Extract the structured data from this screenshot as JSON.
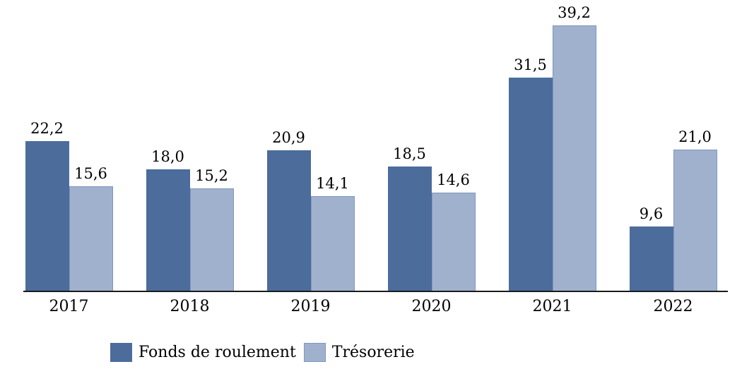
{
  "chart_data": {
    "type": "bar",
    "title": "",
    "xlabel": "",
    "ylabel": "",
    "categories": [
      "2017",
      "2018",
      "2019",
      "2020",
      "2021",
      "2022"
    ],
    "series": [
      {
        "name": "Fonds de roulement",
        "color": "#4c6c9c",
        "values": [
          22.2,
          18.0,
          20.9,
          18.5,
          31.5,
          9.6
        ],
        "value_labels": [
          "22,2",
          "18,0",
          "20,9",
          "18,5",
          "31,5",
          "9,6"
        ]
      },
      {
        "name": "Trésorerie",
        "color": "#a0b1ce",
        "values": [
          15.6,
          15.2,
          14.1,
          14.6,
          39.2,
          21.0
        ],
        "value_labels": [
          "15,6",
          "15,2",
          "14,1",
          "14,6",
          "39,2",
          "21,0"
        ]
      }
    ],
    "ylim": [
      0,
      40
    ],
    "grid": false,
    "y_axis_visible": false,
    "value_labels_shown": true,
    "decimal_separator": ",",
    "legend_position": "bottom",
    "axis_line_color": "#1a1a1a",
    "text_color": "#000000"
  }
}
